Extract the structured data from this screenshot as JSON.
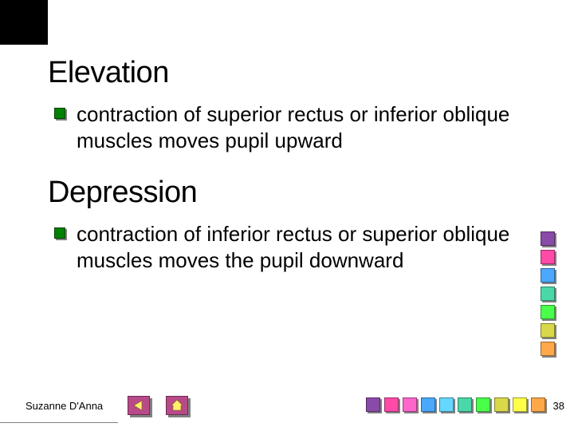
{
  "slide": {
    "heading1": "Elevation",
    "bullet1": "contraction of superior rectus or inferior oblique muscles moves pupil upward",
    "heading2": "Depression",
    "bullet2": "contraction of inferior rectus or superior oblique muscles moves the pupil downward"
  },
  "footer": {
    "author": "Suzanne D'Anna",
    "page": "38"
  },
  "bullet_style": {
    "color": "#008000",
    "shadow": "#808080"
  },
  "nav": {
    "button_color": "#b84a8a",
    "arrow_color": "#fff26a"
  },
  "color_squares_right": [
    "#8a4aa8",
    "#ff4aa8",
    "#4aa8ff",
    "#4ad8a8",
    "#4aff4a",
    "#d8d84a",
    "#ffa84a"
  ],
  "color_squares_bottom": [
    "#8a4aa8",
    "#ff4aa8",
    "#ff66cc",
    "#4aa8ff",
    "#66d8ff",
    "#4ad8a8",
    "#4aff4a",
    "#d8d84a",
    "#ffff4a",
    "#ffa84a"
  ],
  "typography": {
    "heading_fontsize": 38,
    "body_fontsize": 26,
    "footer_fontsize": 13
  },
  "background_color": "#ffffff"
}
